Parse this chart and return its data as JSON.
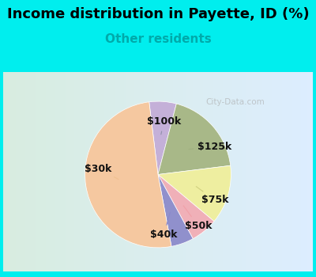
{
  "title": "Income distribution in Payette, ID (%)",
  "subtitle": "Other residents",
  "subtitle_color": "#00aaaa",
  "title_color": "#000000",
  "background_color": "#00eeee",
  "slices": [
    {
      "label": "$100k",
      "value": 6,
      "color": "#c4b0d8"
    },
    {
      "label": "$125k",
      "value": 19,
      "color": "#a8b888"
    },
    {
      "label": "$75k",
      "value": 13,
      "color": "#eeeea0"
    },
    {
      "label": "$50k",
      "value": 6,
      "color": "#f0b0b8"
    },
    {
      "label": "$40k",
      "value": 5,
      "color": "#9090cc"
    },
    {
      "label": "$30k",
      "value": 51,
      "color": "#f5c8a0"
    }
  ],
  "startangle": 97,
  "label_fontsize": 9,
  "title_fontsize": 13,
  "subtitle_fontsize": 11,
  "watermark": "City-Data.com"
}
